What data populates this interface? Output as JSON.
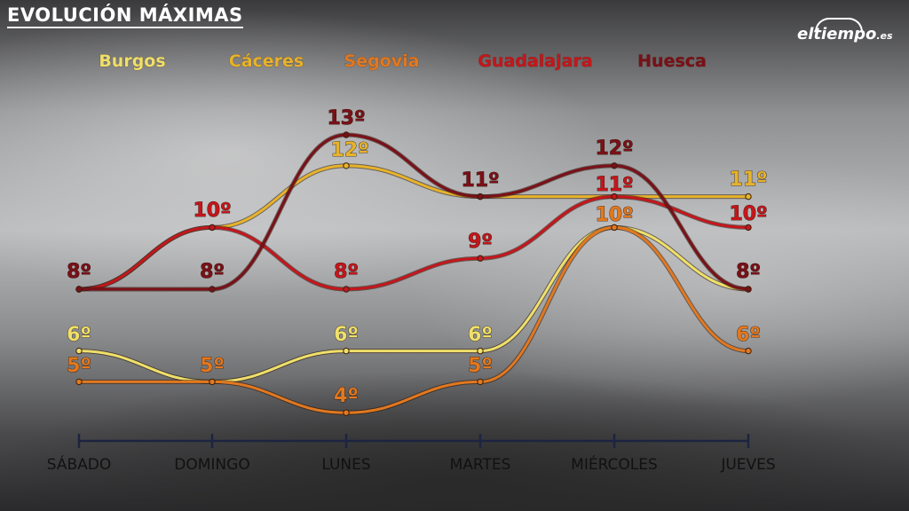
{
  "header": {
    "title": "EVOLUCIÓN MÁXIMAS",
    "logo_main": "eltiempo",
    "logo_suffix": ".es"
  },
  "chart_data": {
    "type": "line",
    "title": "EVOLUCIÓN MÁXIMAS",
    "categories": [
      "SÁBADO",
      "DOMINGO",
      "LUNES",
      "MARTES",
      "MIÉRCOLES",
      "JUEVES"
    ],
    "unit": "º",
    "legend_placement": "top",
    "grid": false,
    "series": [
      {
        "name": "Burgos",
        "color": "#efe06a",
        "values": [
          6,
          5,
          6,
          6,
          10,
          8
        ]
      },
      {
        "name": "Cáceres",
        "color": "#e7b32a",
        "values": [
          8,
          10,
          12,
          11,
          11,
          11
        ]
      },
      {
        "name": "Segovia",
        "color": "#e2781f",
        "values": [
          5,
          5,
          4,
          5,
          10,
          6
        ]
      },
      {
        "name": "Guadalajara",
        "color": "#c4161c",
        "values": [
          8,
          10,
          8,
          9,
          11,
          10
        ]
      },
      {
        "name": "Huesca",
        "color": "#7a1018",
        "values": [
          8,
          8,
          13,
          11,
          12,
          8
        ]
      }
    ],
    "data_labels": [
      {
        "text": "8º",
        "color": "#7a1018"
      },
      {
        "text": "10º",
        "color": "#c4161c"
      },
      {
        "text": "8º",
        "color": "#7a1018"
      },
      {
        "text": "13º",
        "color": "#7a1018"
      },
      {
        "text": "12º",
        "color": "#e7b32a"
      },
      {
        "text": "8º",
        "color": "#c4161c"
      },
      {
        "text": "11º",
        "color": "#7a1018"
      },
      {
        "text": "9º",
        "color": "#c4161c"
      },
      {
        "text": "12º",
        "color": "#7a1018"
      },
      {
        "text": "11º",
        "color": "#c4161c"
      },
      {
        "text": "10º",
        "color": "#e2781f"
      },
      {
        "text": "11º",
        "color": "#e7b32a"
      },
      {
        "text": "10º",
        "color": "#c4161c"
      },
      {
        "text": "8º",
        "color": "#7a1018"
      },
      {
        "text": "6º",
        "color": "#efe06a"
      },
      {
        "text": "5º",
        "color": "#e2781f"
      },
      {
        "text": "5º",
        "color": "#e2781f"
      },
      {
        "text": "6º",
        "color": "#efe06a"
      },
      {
        "text": "4º",
        "color": "#e2781f"
      },
      {
        "text": "6º",
        "color": "#efe06a"
      },
      {
        "text": "5º",
        "color": "#e2781f"
      },
      {
        "text": "6º",
        "color": "#e2781f"
      }
    ]
  }
}
